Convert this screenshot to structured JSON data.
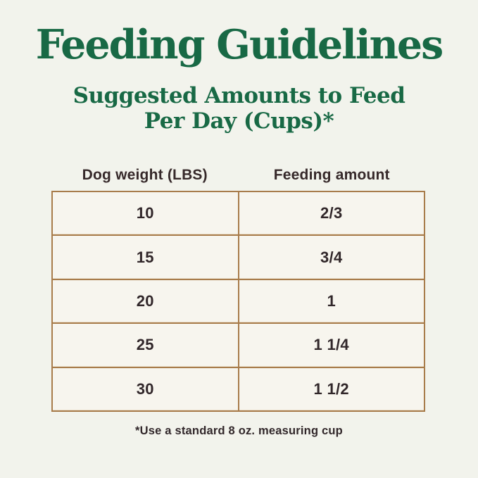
{
  "title": "Feeding Guidelines",
  "subtitle": {
    "line1": "Suggested Amounts to Feed",
    "line2": "Per Day (Cups)*"
  },
  "table": {
    "headers": {
      "weight": "Dog weight (LBS)",
      "amount": "Feeding amount"
    },
    "rows": [
      {
        "weight": "10",
        "amount": "2/3"
      },
      {
        "weight": "15",
        "amount": "3/4"
      },
      {
        "weight": "20",
        "amount": "1"
      },
      {
        "weight": "25",
        "amount": "1 1/4"
      },
      {
        "weight": "30",
        "amount": "1 1/2"
      }
    ]
  },
  "footnote": "*Use a standard 8 oz. measuring cup",
  "colors": {
    "background": "#f2f3ec",
    "title_green": "#186945",
    "table_border_tan": "#a87c4b",
    "cell_background": "#f7f5ee",
    "text_dark": "#31272a"
  },
  "chart_data": {
    "type": "table",
    "title": "Feeding Guidelines",
    "subtitle": "Suggested Amounts to Feed Per Day (Cups)*",
    "columns": [
      "Dog weight (LBS)",
      "Feeding amount"
    ],
    "rows": [
      [
        "10",
        "2/3"
      ],
      [
        "15",
        "3/4"
      ],
      [
        "20",
        "1"
      ],
      [
        "25",
        "1 1/4"
      ],
      [
        "30",
        "1 1/2"
      ]
    ],
    "footnote": "*Use a standard 8 oz. measuring cup",
    "layout_hints": {
      "columns_centered": true,
      "grid": "full tan grid, 2px lines",
      "header_outside_table": true
    }
  }
}
